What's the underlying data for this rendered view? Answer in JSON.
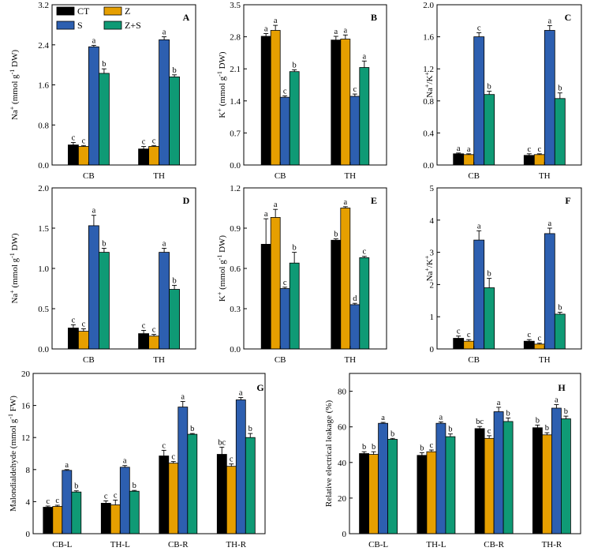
{
  "legend": [
    {
      "key": "CT",
      "label": "CT",
      "color": "#000000"
    },
    {
      "key": "Z",
      "label": "Z",
      "color": "#e69f00"
    },
    {
      "key": "S",
      "label": "S",
      "color": "#2d5fb0"
    },
    {
      "key": "ZS",
      "label": "Z+S",
      "color": "#0f9a75"
    }
  ],
  "chart_data": [
    {
      "type": "bar",
      "panel": "A",
      "ylabel_parts": [
        "Na",
        "+",
        " (mmol g",
        "-1",
        " DW)"
      ],
      "categories": [
        "CB",
        "TH"
      ],
      "ylim": [
        0,
        3.2
      ],
      "yticks": [
        0.0,
        0.8,
        1.6,
        2.4,
        3.2
      ],
      "tick_decimals": 1,
      "series": [
        {
          "name": "CT",
          "values": [
            0.4,
            0.32
          ],
          "errors": [
            0.05,
            0.05
          ],
          "letters": [
            "c",
            "c"
          ]
        },
        {
          "name": "Z",
          "values": [
            0.37,
            0.37
          ],
          "errors": [
            0.02,
            0.02
          ],
          "letters": [
            "c",
            "c"
          ]
        },
        {
          "name": "S",
          "values": [
            2.36,
            2.5
          ],
          "errors": [
            0.03,
            0.06
          ],
          "letters": [
            "a",
            "a"
          ]
        },
        {
          "name": "Z+S",
          "values": [
            1.83,
            1.76
          ],
          "errors": [
            0.09,
            0.04
          ],
          "letters": [
            "b",
            "b"
          ]
        }
      ]
    },
    {
      "type": "bar",
      "panel": "B",
      "ylabel_parts": [
        "K",
        "+",
        " (mmol g",
        "-1",
        " DW)"
      ],
      "categories": [
        "CB",
        "TH"
      ],
      "ylim": [
        0,
        3.5
      ],
      "yticks": [
        0.0,
        0.7,
        1.4,
        2.1,
        2.8,
        3.5
      ],
      "tick_decimals": 1,
      "series": [
        {
          "name": "CT",
          "values": [
            2.81,
            2.73
          ],
          "errors": [
            0.06,
            0.08
          ],
          "letters": [
            "a",
            "a"
          ]
        },
        {
          "name": "Z",
          "values": [
            2.94,
            2.75
          ],
          "errors": [
            0.11,
            0.09
          ],
          "letters": [
            "a",
            "a"
          ]
        },
        {
          "name": "S",
          "values": [
            1.48,
            1.5
          ],
          "errors": [
            0.03,
            0.05
          ],
          "letters": [
            "c",
            "c"
          ]
        },
        {
          "name": "Z+S",
          "values": [
            2.04,
            2.13
          ],
          "errors": [
            0.04,
            0.14
          ],
          "letters": [
            "b",
            "a"
          ]
        }
      ]
    },
    {
      "type": "bar",
      "panel": "C",
      "ylabel_parts": [
        "Na",
        "+",
        "/K",
        "+",
        ""
      ],
      "categories": [
        "CB",
        "TH"
      ],
      "ylim": [
        0,
        2.0
      ],
      "yticks": [
        0.0,
        0.4,
        0.8,
        1.2,
        1.6,
        2.0
      ],
      "tick_decimals": 1,
      "series": [
        {
          "name": "CT",
          "values": [
            0.14,
            0.12
          ],
          "errors": [
            0.01,
            0.02
          ],
          "letters": [
            "a",
            "c"
          ]
        },
        {
          "name": "Z",
          "values": [
            0.13,
            0.13
          ],
          "errors": [
            0.01,
            0.01
          ],
          "letters": [
            "a",
            "c"
          ]
        },
        {
          "name": "S",
          "values": [
            1.6,
            1.68
          ],
          "errors": [
            0.05,
            0.06
          ],
          "letters": [
            "c",
            "a"
          ]
        },
        {
          "name": "Z+S",
          "values": [
            0.88,
            0.83
          ],
          "errors": [
            0.04,
            0.07
          ],
          "letters": [
            "b",
            "b"
          ]
        }
      ]
    },
    {
      "type": "bar",
      "panel": "D",
      "ylabel_parts": [
        "Na",
        "+",
        " (mmol g",
        "-1",
        " DW)"
      ],
      "categories": [
        "CB",
        "TH"
      ],
      "ylim": [
        0,
        2.0
      ],
      "yticks": [
        0.0,
        0.5,
        1.0,
        1.5,
        2.0
      ],
      "tick_decimals": 1,
      "series": [
        {
          "name": "CT",
          "values": [
            0.26,
            0.19
          ],
          "errors": [
            0.04,
            0.04
          ],
          "letters": [
            "c",
            "c"
          ]
        },
        {
          "name": "Z",
          "values": [
            0.22,
            0.16
          ],
          "errors": [
            0.03,
            0.02
          ],
          "letters": [
            "c",
            "c"
          ]
        },
        {
          "name": "S",
          "values": [
            1.53,
            1.2
          ],
          "errors": [
            0.13,
            0.05
          ],
          "letters": [
            "a",
            "a"
          ]
        },
        {
          "name": "Z+S",
          "values": [
            1.2,
            0.74
          ],
          "errors": [
            0.05,
            0.05
          ],
          "letters": [
            "b",
            "b"
          ]
        }
      ]
    },
    {
      "type": "bar",
      "panel": "E",
      "ylabel_parts": [
        "K",
        "+",
        " (mmol g",
        "-1",
        " DW)"
      ],
      "categories": [
        "CB",
        "TH"
      ],
      "ylim": [
        0,
        1.2
      ],
      "yticks": [
        0.0,
        0.3,
        0.6,
        0.9,
        1.2
      ],
      "tick_decimals": 1,
      "series": [
        {
          "name": "CT",
          "values": [
            0.78,
            0.81
          ],
          "errors": [
            0.19,
            0.01
          ],
          "letters": [
            "a",
            "b"
          ]
        },
        {
          "name": "Z",
          "values": [
            0.98,
            1.05
          ],
          "errors": [
            0.06,
            0.01
          ],
          "letters": [
            "a",
            "a"
          ]
        },
        {
          "name": "S",
          "values": [
            0.45,
            0.33
          ],
          "errors": [
            0.01,
            0.01
          ],
          "letters": [
            "c",
            "d"
          ]
        },
        {
          "name": "Z+S",
          "values": [
            0.64,
            0.68
          ],
          "errors": [
            0.08,
            0.01
          ],
          "letters": [
            "b",
            "c"
          ]
        }
      ]
    },
    {
      "type": "bar",
      "panel": "F",
      "ylabel_parts": [
        "Na",
        "+",
        "/K",
        "+",
        ""
      ],
      "categories": [
        "CB",
        "TH"
      ],
      "ylim": [
        0,
        5
      ],
      "yticks": [
        0,
        1,
        2,
        3,
        4,
        5
      ],
      "tick_decimals": 0,
      "series": [
        {
          "name": "CT",
          "values": [
            0.33,
            0.24
          ],
          "errors": [
            0.07,
            0.05
          ],
          "letters": [
            "c",
            "c"
          ]
        },
        {
          "name": "Z",
          "values": [
            0.24,
            0.15
          ],
          "errors": [
            0.05,
            0.03
          ],
          "letters": [
            "c",
            "c"
          ]
        },
        {
          "name": "S",
          "values": [
            3.38,
            3.58
          ],
          "errors": [
            0.29,
            0.17
          ],
          "letters": [
            "a",
            "a"
          ]
        },
        {
          "name": "Z+S",
          "values": [
            1.9,
            1.08
          ],
          "errors": [
            0.29,
            0.06
          ],
          "letters": [
            "b",
            "b"
          ]
        }
      ]
    },
    {
      "type": "bar",
      "panel": "G",
      "ylabel_parts": [
        "Malondialdehyde (mmol g",
        "-1",
        " FW)",
        "",
        ""
      ],
      "categories": [
        "CB-L",
        "TH-L",
        "CB-R",
        "TH-R"
      ],
      "ylim": [
        0,
        20
      ],
      "yticks": [
        0,
        4,
        8,
        12,
        16,
        20
      ],
      "tick_decimals": 0,
      "series": [
        {
          "name": "CT",
          "values": [
            3.3,
            3.8,
            9.7,
            9.9
          ],
          "errors": [
            0.15,
            0.3,
            0.7,
            0.9
          ],
          "letters": [
            "c",
            "c",
            "c",
            "bc"
          ]
        },
        {
          "name": "Z",
          "values": [
            3.4,
            3.6,
            8.8,
            8.4
          ],
          "errors": [
            0.15,
            0.6,
            0.2,
            0.3
          ],
          "letters": [
            "c",
            "c",
            "c",
            "c"
          ]
        },
        {
          "name": "S",
          "values": [
            7.9,
            8.3,
            15.8,
            16.7
          ],
          "errors": [
            0.1,
            0.2,
            0.7,
            0.3
          ],
          "letters": [
            "a",
            "a",
            "a",
            "a"
          ]
        },
        {
          "name": "Z+S",
          "values": [
            5.2,
            5.3,
            12.4,
            12.0
          ],
          "errors": [
            0.15,
            0.1,
            0.1,
            0.5
          ],
          "letters": [
            "b",
            "b",
            "b",
            "b"
          ]
        }
      ]
    },
    {
      "type": "bar",
      "panel": "H",
      "ylabel_parts": [
        "Relative electrical leakage (%)",
        "",
        "",
        "",
        ""
      ],
      "categories": [
        "CB-L",
        "TH-L",
        "CB-R",
        "TH-R"
      ],
      "ylim": [
        0,
        90
      ],
      "yticks": [
        0,
        20,
        40,
        60,
        80
      ],
      "tick_decimals": 0,
      "series": [
        {
          "name": "CT",
          "values": [
            45.0,
            44.0,
            59.0,
            59.5
          ],
          "errors": [
            1.0,
            1.5,
            1.2,
            1.5
          ],
          "letters": [
            "b",
            "b",
            "bc",
            "b"
          ]
        },
        {
          "name": "Z",
          "values": [
            44.5,
            46.0,
            53.5,
            55.5
          ],
          "errors": [
            1.5,
            1.0,
            1.5,
            1.2
          ],
          "letters": [
            "b",
            "c",
            "c",
            "b"
          ]
        },
        {
          "name": "S",
          "values": [
            62.0,
            62.0,
            68.5,
            70.5
          ],
          "errors": [
            0.5,
            0.8,
            2.5,
            2.0
          ],
          "letters": [
            "a",
            "a",
            "a",
            "a"
          ]
        },
        {
          "name": "Z+S",
          "values": [
            53.0,
            54.5,
            63.0,
            64.5
          ],
          "errors": [
            0.5,
            1.5,
            2.0,
            1.5
          ],
          "letters": [
            "b",
            "b",
            "b",
            "b"
          ]
        }
      ]
    }
  ]
}
